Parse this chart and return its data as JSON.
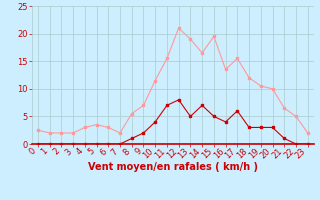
{
  "x": [
    0,
    1,
    2,
    3,
    4,
    5,
    6,
    7,
    8,
    9,
    10,
    11,
    12,
    13,
    14,
    15,
    16,
    17,
    18,
    19,
    20,
    21,
    22,
    23
  ],
  "y_moyen": [
    0,
    0,
    0,
    0,
    0,
    0,
    0,
    0,
    1,
    2,
    4,
    7,
    8,
    5,
    7,
    5,
    4,
    6,
    3,
    3,
    3,
    1,
    0,
    0
  ],
  "y_rafales": [
    2.5,
    2,
    2,
    2,
    3,
    3.5,
    3,
    2,
    5.5,
    7,
    11.5,
    15.5,
    21,
    19,
    16.5,
    19.5,
    13.5,
    15.5,
    12,
    10.5,
    10,
    6.5,
    5,
    2
  ],
  "xlabel": "Vent moyen/en rafales ( km/h )",
  "ylim": [
    0,
    25
  ],
  "yticks": [
    0,
    5,
    10,
    15,
    20,
    25
  ],
  "xticks": [
    0,
    1,
    2,
    3,
    4,
    5,
    6,
    7,
    8,
    9,
    10,
    11,
    12,
    13,
    14,
    15,
    16,
    17,
    18,
    19,
    20,
    21,
    22,
    23
  ],
  "bg_color": "#cceeff",
  "line_color_moyen": "#cc0000",
  "line_color_rafales": "#ff9999",
  "grid_color": "#aacccc",
  "xlabel_color": "#cc0000",
  "xlabel_fontsize": 7,
  "tick_fontsize": 6
}
